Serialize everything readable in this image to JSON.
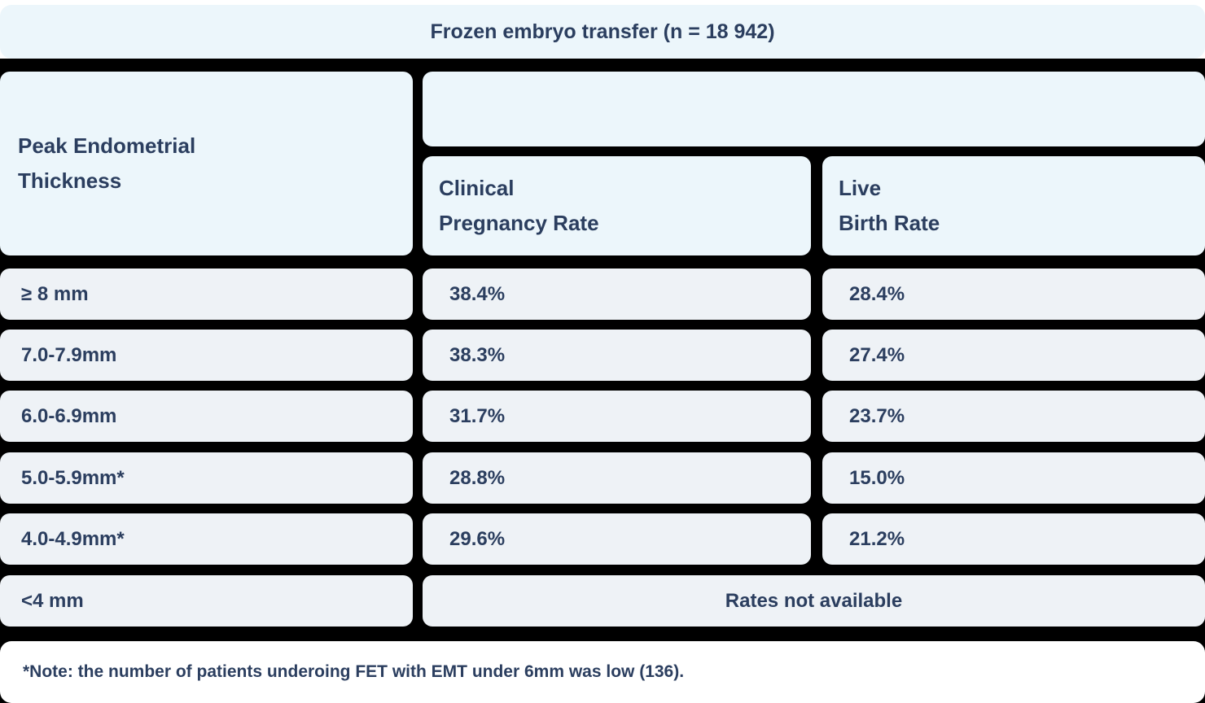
{
  "title": "Frozen embryo transfer (n = 18 942)",
  "header": {
    "row_header": {
      "line1": "Peak Endometrial",
      "line2": "Thickness"
    },
    "clinical_pregnancy_rate": {
      "line1": "Clinical",
      "line2": "Pregnancy Rate"
    },
    "live_birth_rate": {
      "line1": "Live",
      "line2": "Birth Rate"
    }
  },
  "rows": [
    {
      "thickness": "≥ 8 mm",
      "clinical_pregnancy_rate": "38.4%",
      "live_birth_rate": "28.4%"
    },
    {
      "thickness": "7.0-7.9mm",
      "clinical_pregnancy_rate": "38.3%",
      "live_birth_rate": "27.4%"
    },
    {
      "thickness": "6.0-6.9mm",
      "clinical_pregnancy_rate": "31.7%",
      "live_birth_rate": "23.7%"
    },
    {
      "thickness": "5.0-5.9mm*",
      "clinical_pregnancy_rate": "28.8%",
      "live_birth_rate": "15.0%"
    },
    {
      "thickness": "4.0-4.9mm*",
      "clinical_pregnancy_rate": "29.6%",
      "live_birth_rate": "21.2%"
    },
    {
      "thickness": "<4 mm",
      "rates": "Rates not available"
    }
  ],
  "footnote": "*Note: the number of patients underoing FET with EMT under 6mm was low (136).",
  "colors": {
    "header_bg": "#ecf6fb",
    "row_bg": "#eef2f6",
    "gutter": "#000000",
    "text": "#2b3e5f",
    "note_bg": "#ffffff"
  },
  "chart_data": {
    "type": "table",
    "title": "Frozen embryo transfer (n = 18 942)",
    "columns": [
      "Peak Endometrial Thickness",
      "Clinical Pregnancy Rate",
      "Live Birth Rate"
    ],
    "rows": [
      [
        "≥ 8 mm",
        "38.4%",
        "28.4%"
      ],
      [
        "7.0-7.9mm",
        "38.3%",
        "27.4%"
      ],
      [
        "6.0-6.9mm",
        "31.7%",
        "23.7%"
      ],
      [
        "5.0-5.9mm*",
        "28.8%",
        "15.0%"
      ],
      [
        "4.0-4.9mm*",
        "29.6%",
        "21.2%"
      ],
      [
        "<4 mm",
        "Rates not available",
        "Rates not available"
      ]
    ],
    "footnote": "*Note: the number of patients underoing FET with EMT under 6mm was low (136)."
  }
}
